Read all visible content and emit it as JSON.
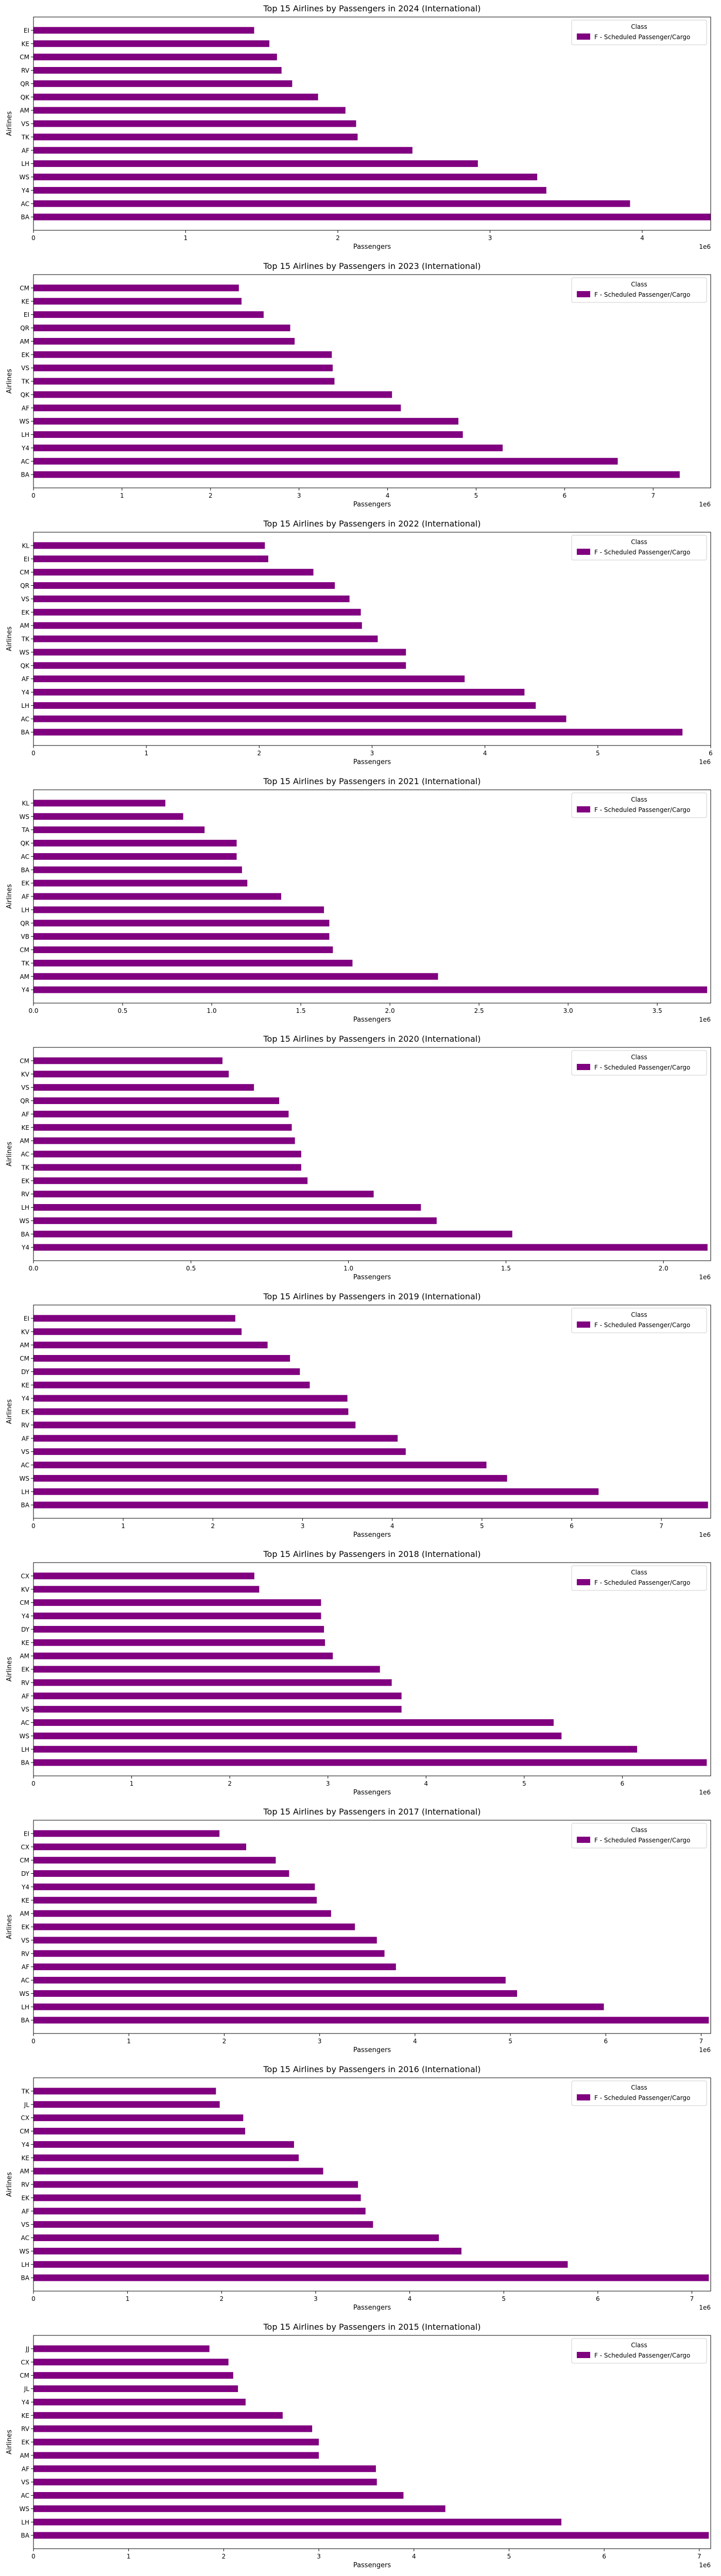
{
  "chart_data": [
    {
      "type": "bar",
      "orientation": "horizontal",
      "title": "Top 15 Airlines by Passengers in 2024 (International)",
      "xlabel": "Passengers",
      "ylabel": "Airlines",
      "scale_label": "1e6",
      "xlim": [
        0,
        4.45
      ],
      "xticks": [
        "0",
        "1",
        "2",
        "3",
        "4"
      ],
      "legend": {
        "title": "Class",
        "entries": [
          "F - Scheduled Passenger/Cargo"
        ],
        "placement": "top-right"
      },
      "grid": false,
      "bar_color": "#800080",
      "categories": [
        "BA",
        "AC",
        "Y4",
        "WS",
        "LH",
        "AF",
        "TK",
        "VS",
        "AM",
        "QK",
        "QR",
        "RV",
        "CM",
        "KE",
        "EI"
      ],
      "values": [
        4.45,
        3.92,
        3.37,
        3.31,
        2.92,
        2.49,
        2.13,
        2.12,
        2.05,
        1.87,
        1.7,
        1.63,
        1.6,
        1.55,
        1.45
      ]
    },
    {
      "type": "bar",
      "orientation": "horizontal",
      "title": "Top 15 Airlines by Passengers in 2023 (International)",
      "xlabel": "Passengers",
      "ylabel": "Airlines",
      "scale_label": "1e6",
      "xlim": [
        0,
        7.65
      ],
      "xticks": [
        "0",
        "1",
        "2",
        "3",
        "4",
        "5",
        "6",
        "7"
      ],
      "legend": {
        "title": "Class",
        "entries": [
          "F - Scheduled Passenger/Cargo"
        ],
        "placement": "top-right"
      },
      "grid": false,
      "bar_color": "#800080",
      "categories": [
        "BA",
        "AC",
        "Y4",
        "LH",
        "WS",
        "AF",
        "QK",
        "TK",
        "VS",
        "EK",
        "AM",
        "QR",
        "EI",
        "KE",
        "CM"
      ],
      "values": [
        7.3,
        6.6,
        5.3,
        4.85,
        4.8,
        4.15,
        4.05,
        3.4,
        3.38,
        3.37,
        2.95,
        2.9,
        2.6,
        2.35,
        2.32
      ]
    },
    {
      "type": "bar",
      "orientation": "horizontal",
      "title": "Top 15 Airlines by Passengers in 2022 (International)",
      "xlabel": "Passengers",
      "ylabel": "Airlines",
      "scale_label": "1e6",
      "xlim": [
        0,
        6.0
      ],
      "xticks": [
        "0",
        "1",
        "2",
        "3",
        "4",
        "5",
        "6"
      ],
      "legend": {
        "title": "Class",
        "entries": [
          "F - Scheduled Passenger/Cargo"
        ],
        "placement": "top-right"
      },
      "grid": false,
      "bar_color": "#800080",
      "categories": [
        "BA",
        "AC",
        "LH",
        "Y4",
        "AF",
        "QK",
        "WS",
        "TK",
        "AM",
        "EK",
        "VS",
        "QR",
        "CM",
        "EI",
        "KL"
      ],
      "values": [
        5.75,
        4.72,
        4.45,
        4.35,
        3.82,
        3.3,
        3.3,
        3.05,
        2.91,
        2.9,
        2.8,
        2.67,
        2.48,
        2.08,
        2.05
      ]
    },
    {
      "type": "bar",
      "orientation": "horizontal",
      "title": "Top 15 Airlines by Passengers in 2021 (International)",
      "xlabel": "Passengers",
      "ylabel": "Airlines",
      "scale_label": "1e6",
      "xlim": [
        0,
        3.8
      ],
      "xticks": [
        "0.0",
        "0.5",
        "1.0",
        "1.5",
        "2.0",
        "2.5",
        "3.0",
        "3.5"
      ],
      "legend": {
        "title": "Class",
        "entries": [
          "F - Scheduled Passenger/Cargo"
        ],
        "placement": "top-right"
      },
      "grid": false,
      "bar_color": "#800080",
      "categories": [
        "Y4",
        "AM",
        "TK",
        "CM",
        "VB",
        "QR",
        "LH",
        "AF",
        "EK",
        "BA",
        "AC",
        "QK",
        "TA",
        "WS",
        "KL"
      ],
      "values": [
        3.78,
        2.27,
        1.79,
        1.68,
        1.66,
        1.66,
        1.63,
        1.39,
        1.2,
        1.17,
        1.14,
        1.14,
        0.96,
        0.84,
        0.74
      ]
    },
    {
      "type": "bar",
      "orientation": "horizontal",
      "title": "Top 15 Airlines by Passengers in 2020 (International)",
      "xlabel": "Passengers",
      "ylabel": "Airlines",
      "scale_label": "1e6",
      "xlim": [
        0,
        2.15
      ],
      "xticks": [
        "0.0",
        "0.5",
        "1.0",
        "1.5",
        "2.0"
      ],
      "legend": {
        "title": "Class",
        "entries": [
          "F - Scheduled Passenger/Cargo"
        ],
        "placement": "top-right"
      },
      "grid": false,
      "bar_color": "#800080",
      "categories": [
        "Y4",
        "BA",
        "WS",
        "LH",
        "RV",
        "EK",
        "TK",
        "AC",
        "AM",
        "KE",
        "AF",
        "QR",
        "VS",
        "KV",
        "CM"
      ],
      "values": [
        2.14,
        1.52,
        1.28,
        1.23,
        1.08,
        0.87,
        0.85,
        0.85,
        0.83,
        0.82,
        0.81,
        0.78,
        0.7,
        0.62,
        0.6
      ]
    },
    {
      "type": "bar",
      "orientation": "horizontal",
      "title": "Top 15 Airlines by Passengers in 2019 (International)",
      "xlabel": "Passengers",
      "ylabel": "Airlines",
      "scale_label": "1e6",
      "xlim": [
        0,
        7.55
      ],
      "xticks": [
        "0",
        "1",
        "2",
        "3",
        "4",
        "5",
        "6",
        "7"
      ],
      "legend": {
        "title": "Class",
        "entries": [
          "F - Scheduled Passenger/Cargo"
        ],
        "placement": "top-right"
      },
      "grid": false,
      "bar_color": "#800080",
      "categories": [
        "BA",
        "LH",
        "WS",
        "AC",
        "VS",
        "AF",
        "RV",
        "EK",
        "Y4",
        "KE",
        "DY",
        "CM",
        "AM",
        "KV",
        "EI"
      ],
      "values": [
        7.52,
        6.3,
        5.28,
        5.05,
        4.15,
        4.06,
        3.59,
        3.51,
        3.5,
        3.08,
        2.97,
        2.86,
        2.61,
        2.32,
        2.25
      ]
    },
    {
      "type": "bar",
      "orientation": "horizontal",
      "title": "Top 15 Airlines by Passengers in 2018 (International)",
      "xlabel": "Passengers",
      "ylabel": "Airlines",
      "scale_label": "1e6",
      "xlim": [
        0,
        6.9
      ],
      "xticks": [
        "0",
        "1",
        "2",
        "3",
        "4",
        "5",
        "6",
        "7"
      ],
      "legend": {
        "title": "Class",
        "entries": [
          "F - Scheduled Passenger/Cargo"
        ],
        "placement": "top-right"
      },
      "grid": false,
      "bar_color": "#800080",
      "categories": [
        "BA",
        "LH",
        "WS",
        "AC",
        "VS",
        "AF",
        "RV",
        "EK",
        "AM",
        "KE",
        "DY",
        "Y4",
        "CM",
        "KV",
        "CX"
      ],
      "values": [
        6.86,
        6.15,
        5.38,
        5.3,
        3.75,
        3.75,
        3.65,
        3.53,
        3.05,
        2.97,
        2.96,
        2.93,
        2.93,
        2.3,
        2.25
      ]
    },
    {
      "type": "bar",
      "orientation": "horizontal",
      "title": "Top 15 Airlines by Passengers in 2017 (International)",
      "xlabel": "Passengers",
      "ylabel": "Airlines",
      "scale_label": "1e6",
      "xlim": [
        0,
        7.1
      ],
      "xticks": [
        "0",
        "1",
        "2",
        "3",
        "4",
        "5",
        "6",
        "7"
      ],
      "legend": {
        "title": "Class",
        "entries": [
          "F - Scheduled Passenger/Cargo"
        ],
        "placement": "top-right"
      },
      "grid": false,
      "bar_color": "#800080",
      "categories": [
        "BA",
        "LH",
        "WS",
        "AC",
        "AF",
        "RV",
        "VS",
        "EK",
        "AM",
        "KE",
        "Y4",
        "DY",
        "CM",
        "CX",
        "EI"
      ],
      "values": [
        7.08,
        5.98,
        5.07,
        4.95,
        3.8,
        3.68,
        3.6,
        3.37,
        3.12,
        2.97,
        2.95,
        2.68,
        2.54,
        2.23,
        1.95
      ]
    },
    {
      "type": "bar",
      "orientation": "horizontal",
      "title": "Top 15 Airlines by Passengers in 2016 (International)",
      "xlabel": "Passengers",
      "ylabel": "Airlines",
      "scale_label": "1e6",
      "xlim": [
        0,
        7.2
      ],
      "xticks": [
        "0",
        "1",
        "2",
        "3",
        "4",
        "5",
        "6",
        "7"
      ],
      "legend": {
        "title": "Class",
        "entries": [
          "F - Scheduled Passenger/Cargo"
        ],
        "placement": "top-right"
      },
      "grid": false,
      "bar_color": "#800080",
      "categories": [
        "BA",
        "LH",
        "WS",
        "AC",
        "VS",
        "AF",
        "EK",
        "RV",
        "AM",
        "KE",
        "Y4",
        "CM",
        "CX",
        "JL",
        "TK"
      ],
      "values": [
        7.18,
        5.68,
        4.55,
        4.31,
        3.61,
        3.53,
        3.48,
        3.45,
        3.08,
        2.82,
        2.77,
        2.25,
        2.23,
        1.98,
        1.94
      ]
    },
    {
      "type": "bar",
      "orientation": "horizontal",
      "title": "Top 15 Airlines by Passengers in 2015 (International)",
      "xlabel": "Passengers",
      "ylabel": "Airlines",
      "scale_label": "1e6",
      "xlim": [
        0,
        7.12
      ],
      "xticks": [
        "0",
        "1",
        "2",
        "3",
        "4",
        "5",
        "6",
        "7"
      ],
      "legend": {
        "title": "Class",
        "entries": [
          "F - Scheduled Passenger/Cargo"
        ],
        "placement": "top-right"
      },
      "grid": false,
      "bar_color": "#800080",
      "categories": [
        "BA",
        "LH",
        "WS",
        "AC",
        "VS",
        "AF",
        "AM",
        "EK",
        "RV",
        "KE",
        "Y4",
        "JL",
        "CM",
        "CX",
        "JJ"
      ],
      "values": [
        7.1,
        5.55,
        4.33,
        3.89,
        3.61,
        3.6,
        3.0,
        3.0,
        2.93,
        2.62,
        2.23,
        2.15,
        2.1,
        2.05,
        1.85
      ]
    }
  ]
}
